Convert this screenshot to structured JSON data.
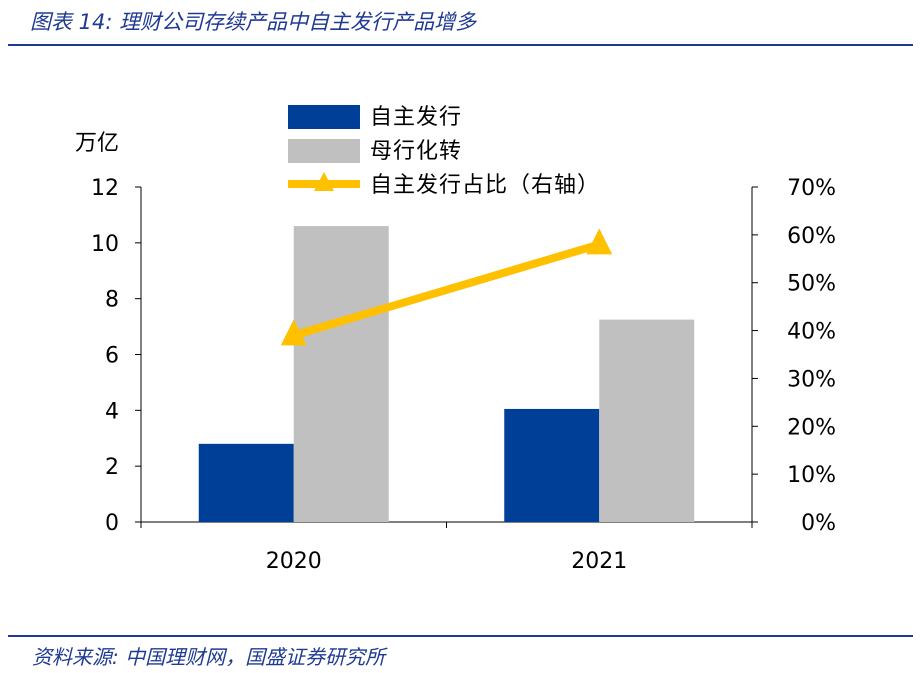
{
  "figure": {
    "title": "图表 14:  理财公司存续产品中自主发行产品增多",
    "source": "资料来源:  中国理财网，国盛证券研究所"
  },
  "colors": {
    "brand": "#1f3a93",
    "series_self": "#003f98",
    "series_parent": "#c0c0c0",
    "series_ratio": "#ffc000"
  },
  "chart_data": {
    "type": "bar",
    "categories": [
      "2020",
      "2021"
    ],
    "ylabel": "万亿",
    "ylim": [
      0,
      12
    ],
    "yticks": [
      "0",
      "2",
      "4",
      "6",
      "8",
      "10",
      "12"
    ],
    "y2lim": [
      0,
      0.7
    ],
    "y2ticks": [
      "0%",
      "10%",
      "20%",
      "30%",
      "40%",
      "50%",
      "60%",
      "70%"
    ],
    "series": [
      {
        "name": "自主发行",
        "type": "bar",
        "axis": "left",
        "values": [
          2.8,
          4.05
        ]
      },
      {
        "name": "母行化转",
        "type": "bar",
        "axis": "left",
        "values": [
          10.6,
          7.25
        ]
      },
      {
        "name": "自主发行占比（右轴）",
        "type": "line",
        "axis": "right",
        "marker": "triangle",
        "values": [
          0.39,
          0.58
        ]
      }
    ],
    "legend_position": "top"
  }
}
